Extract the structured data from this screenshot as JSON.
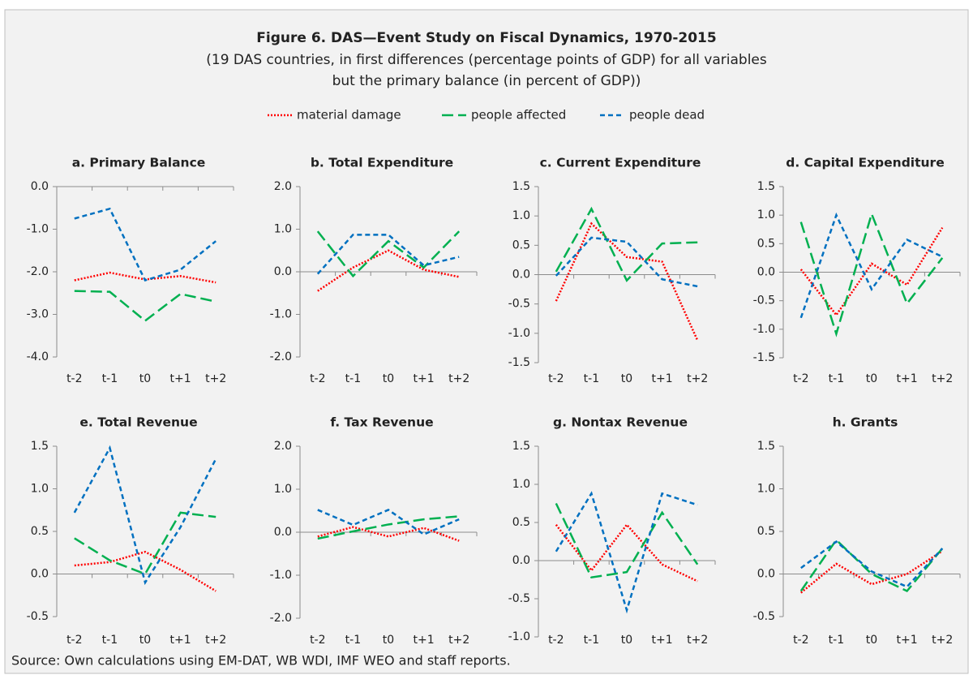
{
  "title": "Figure 6. DAS—Event Study on Fiscal Dynamics, 1970-2015",
  "subtitle": [
    "(19 DAS countries, in first differences (percentage points of GDP) for all variables",
    "but the primary balance (in percent of GDP))"
  ],
  "source": "Source: Own calculations using EM-DAT, WB WDI, IMF WEO and staff reports.",
  "chart_data": [
    {
      "type": "line",
      "title": "a. Primary Balance",
      "categories": [
        "t-2",
        "t-1",
        "t0",
        "t+1",
        "t+2"
      ],
      "ylim": [
        -4,
        0
      ],
      "yticks": [
        {
          "value": -4,
          "label": "-4.0"
        },
        {
          "value": -3,
          "label": "-3.0"
        },
        {
          "value": -2,
          "label": "-2.0"
        },
        {
          "value": -1,
          "label": "-1.0"
        },
        {
          "value": 0,
          "label": "0.0"
        }
      ],
      "series": [
        {
          "name": "material damage",
          "color": "#ff0000",
          "style": "dotted",
          "values": [
            -2.2,
            -2.02,
            -2.18,
            -2.1,
            -2.25
          ]
        },
        {
          "name": "people affected",
          "color": "#00b050",
          "style": "long-dash",
          "values": [
            -2.45,
            -2.47,
            -3.15,
            -2.52,
            -2.7
          ]
        },
        {
          "name": "people dead",
          "color": "#0070c0",
          "style": "dashed",
          "values": [
            -0.75,
            -0.52,
            -2.2,
            -1.95,
            -1.28
          ]
        }
      ]
    },
    {
      "type": "line",
      "title": "b. Total Expenditure",
      "categories": [
        "t-2",
        "t-1",
        "t0",
        "t+1",
        "t+2"
      ],
      "ylim": [
        -2,
        2
      ],
      "yticks": [
        {
          "value": -2,
          "label": "-2.0"
        },
        {
          "value": -1,
          "label": "-1.0"
        },
        {
          "value": 0,
          "label": "0.0"
        },
        {
          "value": 1,
          "label": "1.0"
        },
        {
          "value": 2,
          "label": "2.0"
        }
      ],
      "series": [
        {
          "name": "material damage",
          "color": "#ff0000",
          "style": "dotted",
          "values": [
            -0.45,
            0.1,
            0.5,
            0.05,
            -0.12
          ]
        },
        {
          "name": "people affected",
          "color": "#00b050",
          "style": "long-dash",
          "values": [
            0.95,
            -0.1,
            0.72,
            0.1,
            0.95
          ]
        },
        {
          "name": "people dead",
          "color": "#0070c0",
          "style": "dashed",
          "values": [
            -0.05,
            0.87,
            0.87,
            0.15,
            0.35
          ]
        }
      ]
    },
    {
      "type": "line",
      "title": "c. Current Expenditure",
      "categories": [
        "t-2",
        "t-1",
        "t0",
        "t+1",
        "t+2"
      ],
      "ylim": [
        -1.5,
        1.5
      ],
      "yticks": [
        -1.5,
        {
          "value": -1,
          "label": "-1.0"
        },
        -0.5,
        {
          "value": 0,
          "label": "0.0"
        },
        0.5,
        {
          "value": 1,
          "label": "1.0"
        },
        1.5
      ],
      "series": [
        {
          "name": "material damage",
          "color": "#ff0000",
          "style": "dotted",
          "values": [
            -0.45,
            0.87,
            0.3,
            0.22,
            -1.12
          ]
        },
        {
          "name": "people affected",
          "color": "#00b050",
          "style": "long-dash",
          "values": [
            0.05,
            1.12,
            -0.1,
            0.53,
            0.55
          ]
        },
        {
          "name": "people dead",
          "color": "#0070c0",
          "style": "dashed",
          "values": [
            -0.02,
            0.63,
            0.56,
            -0.08,
            -0.2
          ]
        }
      ]
    },
    {
      "type": "line",
      "title": "d. Capital Expenditure",
      "categories": [
        "t-2",
        "t-1",
        "t0",
        "t+1",
        "t+2"
      ],
      "ylim": [
        -1.5,
        1.5
      ],
      "yticks": [
        -1.5,
        {
          "value": -1,
          "label": "-1.0"
        },
        -0.5,
        {
          "value": 0,
          "label": "0.0"
        },
        0.5,
        {
          "value": 1,
          "label": "1.0"
        },
        1.5
      ],
      "series": [
        {
          "name": "material damage",
          "color": "#ff0000",
          "style": "dotted",
          "values": [
            0.05,
            -0.75,
            0.15,
            -0.22,
            0.78
          ]
        },
        {
          "name": "people affected",
          "color": "#00b050",
          "style": "long-dash",
          "values": [
            0.88,
            -1.08,
            1.02,
            -0.55,
            0.25
          ]
        },
        {
          "name": "people dead",
          "color": "#0070c0",
          "style": "dashed",
          "values": [
            -0.8,
            1.0,
            -0.3,
            0.57,
            0.27
          ]
        }
      ]
    },
    {
      "type": "line",
      "title": "e. Total Revenue",
      "categories": [
        "t-2",
        "t-1",
        "t0",
        "t+1",
        "t+2"
      ],
      "ylim": [
        -0.5,
        1.5
      ],
      "yticks": [
        -0.5,
        {
          "value": 0,
          "label": "0.0"
        },
        0.5,
        {
          "value": 1,
          "label": "1.0"
        },
        1.5
      ],
      "series": [
        {
          "name": "material damage",
          "color": "#ff0000",
          "style": "dotted",
          "values": [
            0.1,
            0.14,
            0.26,
            0.05,
            -0.2
          ]
        },
        {
          "name": "people affected",
          "color": "#00b050",
          "style": "long-dash",
          "values": [
            0.42,
            0.16,
            0.0,
            0.72,
            0.67
          ]
        },
        {
          "name": "people dead",
          "color": "#0070c0",
          "style": "dashed",
          "values": [
            0.72,
            1.48,
            -0.1,
            0.55,
            1.35
          ]
        }
      ]
    },
    {
      "type": "line",
      "title": "f. Tax Revenue",
      "categories": [
        "t-2",
        "t-1",
        "t0",
        "t+1",
        "t+2"
      ],
      "ylim": [
        -2,
        2
      ],
      "yticks": [
        {
          "value": -2,
          "label": "-2.0"
        },
        {
          "value": -1,
          "label": "-1.0"
        },
        {
          "value": 0,
          "label": "0.0"
        },
        {
          "value": 1,
          "label": "1.0"
        },
        {
          "value": 2,
          "label": "2.0"
        }
      ],
      "series": [
        {
          "name": "material damage",
          "color": "#ff0000",
          "style": "dotted",
          "values": [
            -0.1,
            0.12,
            -0.1,
            0.1,
            -0.2
          ]
        },
        {
          "name": "people affected",
          "color": "#00b050",
          "style": "long-dash",
          "values": [
            -0.15,
            0.02,
            0.18,
            0.3,
            0.37
          ]
        },
        {
          "name": "people dead",
          "color": "#0070c0",
          "style": "dashed",
          "values": [
            0.52,
            0.17,
            0.52,
            -0.05,
            0.3
          ]
        }
      ]
    },
    {
      "type": "line",
      "title": "g. Nontax Revenue",
      "categories": [
        "t-2",
        "t-1",
        "t0",
        "t+1",
        "t+2"
      ],
      "ylim": [
        -1,
        1.5
      ],
      "yticks": [
        {
          "value": -1,
          "label": "-1.0"
        },
        -0.5,
        {
          "value": 0,
          "label": "0.0"
        },
        0.5,
        {
          "value": 1,
          "label": "1.0"
        },
        1.5
      ],
      "series": [
        {
          "name": "material damage",
          "color": "#ff0000",
          "style": "dotted",
          "values": [
            0.47,
            -0.13,
            0.47,
            -0.05,
            -0.27
          ]
        },
        {
          "name": "people affected",
          "color": "#00b050",
          "style": "long-dash",
          "values": [
            0.75,
            -0.22,
            -0.15,
            0.63,
            -0.05
          ]
        },
        {
          "name": "people dead",
          "color": "#0070c0",
          "style": "dashed",
          "values": [
            0.12,
            0.88,
            -0.65,
            0.88,
            0.73
          ]
        }
      ]
    },
    {
      "type": "line",
      "title": "h. Grants",
      "categories": [
        "t-2",
        "t-1",
        "t0",
        "t+1",
        "t+2"
      ],
      "ylim": [
        -0.5,
        1.5
      ],
      "yticks": [
        -0.5,
        {
          "value": 0,
          "label": "0.0"
        },
        0.5,
        {
          "value": 1,
          "label": "1.0"
        },
        1.5
      ],
      "series": [
        {
          "name": "material damage",
          "color": "#ff0000",
          "style": "dotted",
          "values": [
            -0.22,
            0.12,
            -0.12,
            0.0,
            0.27
          ]
        },
        {
          "name": "people affected",
          "color": "#00b050",
          "style": "long-dash",
          "values": [
            -0.2,
            0.4,
            0.0,
            -0.2,
            0.3
          ]
        },
        {
          "name": "people dead",
          "color": "#0070c0",
          "style": "dashed",
          "values": [
            0.07,
            0.38,
            0.03,
            -0.15,
            0.3
          ]
        }
      ]
    }
  ]
}
